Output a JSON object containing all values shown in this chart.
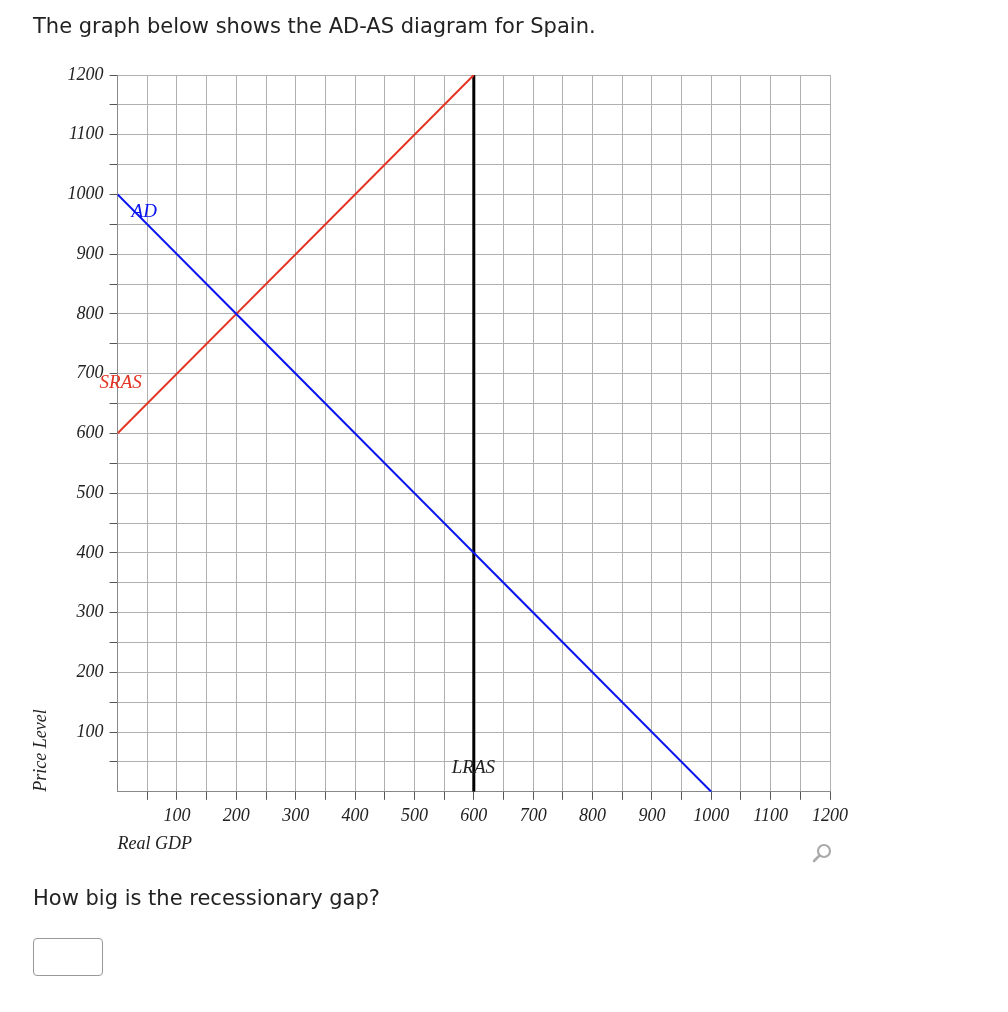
{
  "chart_data": {
    "type": "line",
    "title": "The graph below shows the AD-AS diagram for Spain.",
    "xlabel": "Real GDP",
    "ylabel": "Price Level",
    "xlim": [
      0,
      1200
    ],
    "ylim": [
      0,
      1200
    ],
    "xticks": [
      {
        "value": 50,
        "label": null
      },
      100,
      {
        "value": 150,
        "label": null
      },
      200,
      {
        "value": 250,
        "label": null
      },
      300,
      {
        "value": 350,
        "label": null
      },
      400,
      {
        "value": 450,
        "label": null
      },
      500,
      {
        "value": 550,
        "label": null
      },
      600,
      {
        "value": 650,
        "label": null
      },
      700,
      {
        "value": 750,
        "label": null
      },
      800,
      {
        "value": 850,
        "label": null
      },
      900,
      {
        "value": 950,
        "label": null
      },
      1000,
      {
        "value": 1050,
        "label": null
      },
      1100,
      {
        "value": 1150,
        "label": null
      },
      1200
    ],
    "yticks": [
      {
        "value": 50,
        "label": null
      },
      100,
      {
        "value": 150,
        "label": null
      },
      200,
      {
        "value": 250,
        "label": null
      },
      300,
      {
        "value": 350,
        "label": null
      },
      400,
      {
        "value": 450,
        "label": null
      },
      500,
      {
        "value": 550,
        "label": null
      },
      600,
      {
        "value": 650,
        "label": null
      },
      700,
      {
        "value": 750,
        "label": null
      },
      800,
      {
        "value": 850,
        "label": null
      },
      900,
      {
        "value": 950,
        "label": null
      },
      1000,
      {
        "value": 1050,
        "label": null
      },
      1100,
      {
        "value": 1150,
        "label": null
      },
      1200
    ],
    "grid": true,
    "legend": false,
    "marker": "none",
    "line_style": "solid",
    "series": [
      {
        "name": "AD",
        "color": "#0a14f0",
        "x": [
          0,
          1000
        ],
        "values": [
          1000,
          0
        ]
      },
      {
        "name": "SRAS",
        "color": "#e53323",
        "x": [
          0,
          600
        ],
        "values": [
          600,
          1200
        ]
      },
      {
        "name": "LRAS",
        "color": "#000000",
        "x": [
          600,
          600
        ],
        "values": [
          0,
          1200
        ]
      }
    ],
    "annotations": [
      "How big is the recessionary gap?"
    ]
  }
}
